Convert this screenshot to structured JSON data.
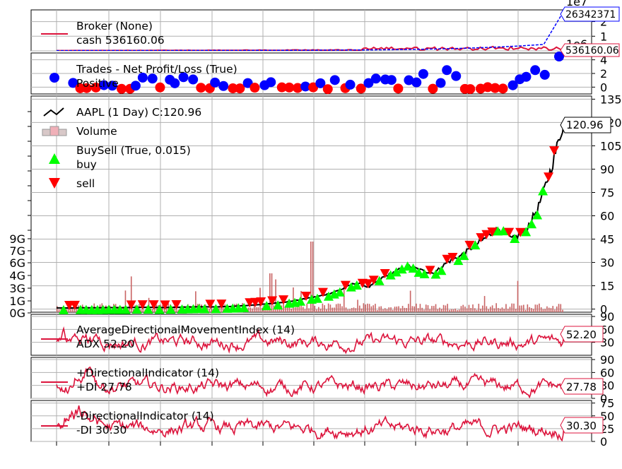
{
  "chart_data": [
    {
      "type": "line",
      "panel": "broker",
      "legend": [
        "Broker (None)",
        "cash 536160.06"
      ],
      "series": [
        {
          "name": "value",
          "color": "#0000ff",
          "end_value": 26342371
        },
        {
          "name": "cash",
          "color": "#dc143c",
          "end_value": 536160.06
        }
      ],
      "tag_value": "26342371",
      "tag_cash": "536160.06",
      "y_multiplier": "1e7",
      "y_multiplier_2": "1e6",
      "yticks": [
        "2",
        "1",
        "0"
      ],
      "ylim": [
        0,
        2.8
      ],
      "grid": true
    },
    {
      "type": "scatter",
      "panel": "trades",
      "legend": [
        "Trades - Net Profit/Loss (True)",
        "Positive"
      ],
      "series": [
        {
          "name": "Positive",
          "color": "#0000ff"
        },
        {
          "name": "Negative",
          "color": "#ff0000"
        }
      ],
      "yticks": [
        "4",
        "2",
        "0"
      ],
      "ylim": [
        -1,
        5
      ],
      "grid": true
    },
    {
      "type": "line",
      "panel": "price",
      "legend": [
        "AAPL (1 Day) C:120.96",
        "Volume",
        "BuySell (True, 0.015)",
        "buy",
        "sell"
      ],
      "last_close": "120.96",
      "close_samples": [
        0.8,
        0.7,
        0.9,
        0.85,
        1.0,
        0.9,
        1.1,
        1.2,
        1.0,
        1.1,
        1.3,
        1.5,
        1.4,
        1.6,
        2.0,
        2.5,
        3.2,
        4.0,
        5.0,
        6.5,
        8.0,
        10.0,
        13.0,
        17.0,
        14.0,
        20.0,
        24.0,
        28.0,
        25.0,
        23.0,
        30.0,
        34.0,
        40.0,
        46.0,
        52.0,
        45.0,
        50.0,
        65.0,
        90.0,
        120.96
      ],
      "yticks_right": [
        "135",
        "120",
        "105",
        "90",
        "75",
        "60",
        "45",
        "30",
        "15",
        "0"
      ],
      "ylim_right": [
        -2,
        137
      ],
      "volume_ticks_left": [
        "9G",
        "7G",
        "6G",
        "4G",
        "3G",
        "1G",
        "0G"
      ],
      "colors": {
        "close": "#000000",
        "buy": "#00ff00",
        "sell": "#ff0000",
        "volume": "#c96464"
      },
      "grid": true
    },
    {
      "type": "line",
      "panel": "adx",
      "legend": [
        "AverageDirectionalMovementIndex (14)",
        "ADX 52.20"
      ],
      "last_value": "52.20",
      "yticks": [
        "90",
        "60",
        "30"
      ],
      "ylim": [
        0,
        95
      ],
      "color": "#dc143c"
    },
    {
      "type": "line",
      "panel": "plusdi",
      "legend": [
        "+DirectionalIndicator (14)",
        "+DI 27.78"
      ],
      "last_value": "27.78",
      "yticks": [
        "90",
        "60",
        "30",
        "0"
      ],
      "ylim": [
        0,
        95
      ],
      "color": "#dc143c"
    },
    {
      "type": "line",
      "panel": "minusdi",
      "legend": [
        "-DirectionalIndicator (14)",
        "-DI 30.30"
      ],
      "last_value": "30.30",
      "yticks": [
        "75",
        "50",
        "25",
        "0"
      ],
      "ylim": [
        0,
        80
      ],
      "color": "#dc143c"
    }
  ]
}
